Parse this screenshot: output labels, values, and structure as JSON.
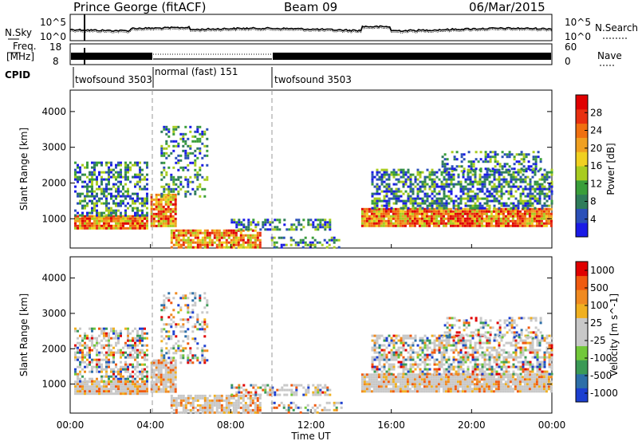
{
  "header": {
    "title": "Prince George (fitACF)",
    "beam": "Beam 09",
    "date": "06/Mar/2015"
  },
  "sky_panel": {
    "left_label": "N.Sky",
    "right_label": "N.Search",
    "left_ticks": [
      "10^5",
      "10^0"
    ],
    "right_ticks": [
      "10^5",
      "10^0"
    ]
  },
  "freq_panel": {
    "left_label_line1": "Freq.",
    "left_label_line2": "[MHz]",
    "left_ticks": [
      "18",
      "8"
    ],
    "right_ticks": [
      "60",
      "0"
    ],
    "right_label": "Nave"
  },
  "cpid": {
    "label": "CPID",
    "segments": [
      {
        "name": "twofsound 3503",
        "start": 0.0
      },
      {
        "name": "normal (fast) 151",
        "start": 4.0
      },
      {
        "name": "twofsound 3503",
        "start": 10.0
      }
    ]
  },
  "chart_data": [
    {
      "type": "heatmap",
      "name": "Power",
      "ylabel": "Slant Range [km]",
      "ylim": [
        180,
        4600
      ],
      "y_ticks": [
        "1000",
        "2000",
        "3000",
        "4000"
      ],
      "colorbar_label": "Power [dB]",
      "colorbar_ticks": [
        "4",
        "8",
        "12",
        "16",
        "20",
        "24",
        "28"
      ],
      "colorbar_colors": [
        "#1a1ae6",
        "#2b50b8",
        "#2f7c5a",
        "#3a9e3a",
        "#a8cc20",
        "#f0d020",
        "#f0a020",
        "#f07010",
        "#e83010",
        "#e00000"
      ]
    },
    {
      "type": "heatmap",
      "name": "Velocity",
      "ylabel": "Slant Range [km]",
      "ylim": [
        180,
        4600
      ],
      "y_ticks": [
        "1000",
        "2000",
        "3000",
        "4000"
      ],
      "colorbar_label": "Velocity [m s^-1]",
      "colorbar_ticks": [
        "1000",
        "500",
        "100",
        "25",
        "-25",
        "-100",
        "-500",
        "-1000"
      ],
      "colorbar_colors": [
        "#1c3fd0",
        "#2d6fa8",
        "#3b9a56",
        "#72c83a",
        "#c8c8c8",
        "#c8c8c8",
        "#f0b020",
        "#f08a20",
        "#f05a10",
        "#e00000"
      ]
    }
  ],
  "x_axis": {
    "label": "Time UT",
    "ticks": [
      "00:00",
      "04:00",
      "08:00",
      "12:00",
      "16:00",
      "20:00",
      "00:00"
    ],
    "range_hours": [
      0,
      24
    ]
  }
}
